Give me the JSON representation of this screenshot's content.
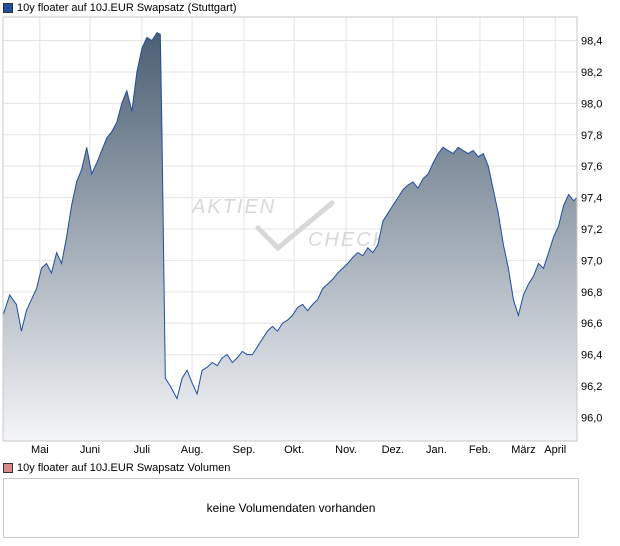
{
  "colors": {
    "price_line": "#1f4ea0",
    "fill_top": "#4c5f73",
    "fill_bottom": "#f4f5f7",
    "price_swatch": "#1f4ea0",
    "volume_swatch": "#d98a8a",
    "grid": "#e4e4e4",
    "frame": "#c8c8c8",
    "watermark": "#d8d8d8"
  },
  "watermark": {
    "line1": "AKTIEN",
    "line2": "CHECK"
  },
  "price_panel": {
    "legend": "10y floater auf 10J.EUR Swapsatz (Stuttgart)"
  },
  "volume_panel": {
    "legend": "10y floater auf 10J.EUR Swapsatz Volumen",
    "message": "keine Volumendaten vorhanden"
  },
  "chart_data": {
    "type": "area",
    "title": "10y floater auf 10J.EUR Swapsatz (Stuttgart)",
    "xlabel": "",
    "ylabel": "",
    "y_axis_side": "right",
    "ylim": [
      95.85,
      98.55
    ],
    "yticks": [
      "96,0",
      "96,2",
      "96,4",
      "96,6",
      "96,8",
      "97,0",
      "97,2",
      "97,4",
      "97,6",
      "97,8",
      "98,0",
      "98,2",
      "98,4"
    ],
    "ytick_values": [
      96.0,
      96.2,
      96.4,
      96.6,
      96.8,
      97.0,
      97.2,
      97.4,
      97.6,
      97.8,
      98.0,
      98.2,
      98.4
    ],
    "xticks": [
      "Mai",
      "Juni",
      "Juli",
      "Aug.",
      "Sep.",
      "Okt.",
      "Nov.",
      "Dez.",
      "Jan.",
      "Feb.",
      "März",
      "April"
    ],
    "xlim": [
      0,
      343
    ],
    "xtick_positions": [
      22,
      52,
      83,
      113,
      144,
      174,
      205,
      233,
      259,
      285,
      311,
      330
    ],
    "grid": true,
    "series": [
      {
        "name": "10y floater auf 10J.EUR Swapsatz (Stuttgart)",
        "x": [
          0,
          4,
          8,
          11,
          14,
          17,
          20,
          23,
          26,
          29,
          32,
          35,
          38,
          41,
          44,
          47,
          50,
          53,
          56,
          59,
          62,
          65,
          68,
          71,
          74,
          77,
          80,
          83,
          86,
          89,
          92,
          94,
          95,
          97,
          100,
          104,
          107,
          110,
          113,
          116,
          119,
          122,
          125,
          128,
          131,
          134,
          137,
          140,
          143,
          146,
          149,
          152,
          155,
          158,
          161,
          164,
          167,
          170,
          173,
          176,
          179,
          182,
          185,
          188,
          191,
          194,
          197,
          200,
          203,
          206,
          209,
          212,
          215,
          218,
          221,
          224,
          227,
          230,
          233,
          236,
          239,
          242,
          245,
          248,
          251,
          254,
          257,
          260,
          263,
          266,
          269,
          272,
          275,
          278,
          281,
          284,
          287,
          290,
          293,
          296,
          299,
          302,
          305,
          308,
          311,
          314,
          317,
          320,
          323,
          326,
          329,
          332,
          335,
          338,
          341,
          343
        ],
        "y": [
          96.65,
          96.78,
          96.72,
          96.55,
          96.68,
          96.75,
          96.82,
          96.95,
          96.98,
          96.92,
          97.05,
          96.98,
          97.15,
          97.35,
          97.5,
          97.58,
          97.72,
          97.55,
          97.62,
          97.7,
          97.78,
          97.82,
          97.88,
          98.0,
          98.08,
          97.95,
          98.2,
          98.35,
          98.42,
          98.4,
          98.45,
          98.44,
          97.8,
          96.25,
          96.2,
          96.12,
          96.25,
          96.3,
          96.22,
          96.15,
          96.3,
          96.32,
          96.35,
          96.33,
          96.38,
          96.4,
          96.35,
          96.38,
          96.42,
          96.4,
          96.4,
          96.45,
          96.5,
          96.55,
          96.58,
          96.55,
          96.6,
          96.62,
          96.65,
          96.7,
          96.72,
          96.68,
          96.72,
          96.75,
          96.82,
          96.85,
          96.88,
          96.92,
          96.95,
          96.98,
          97.02,
          97.05,
          97.03,
          97.08,
          97.05,
          97.1,
          97.25,
          97.3,
          97.35,
          97.4,
          97.45,
          97.48,
          97.5,
          97.46,
          97.52,
          97.55,
          97.62,
          97.68,
          97.72,
          97.7,
          97.68,
          97.72,
          97.7,
          97.68,
          97.7,
          97.66,
          97.68,
          97.6,
          97.45,
          97.3,
          97.1,
          96.95,
          96.75,
          96.65,
          96.78,
          96.85,
          96.9,
          96.98,
          96.95,
          97.05,
          97.15,
          97.22,
          97.35,
          97.42,
          97.38,
          97.4
        ]
      }
    ]
  }
}
